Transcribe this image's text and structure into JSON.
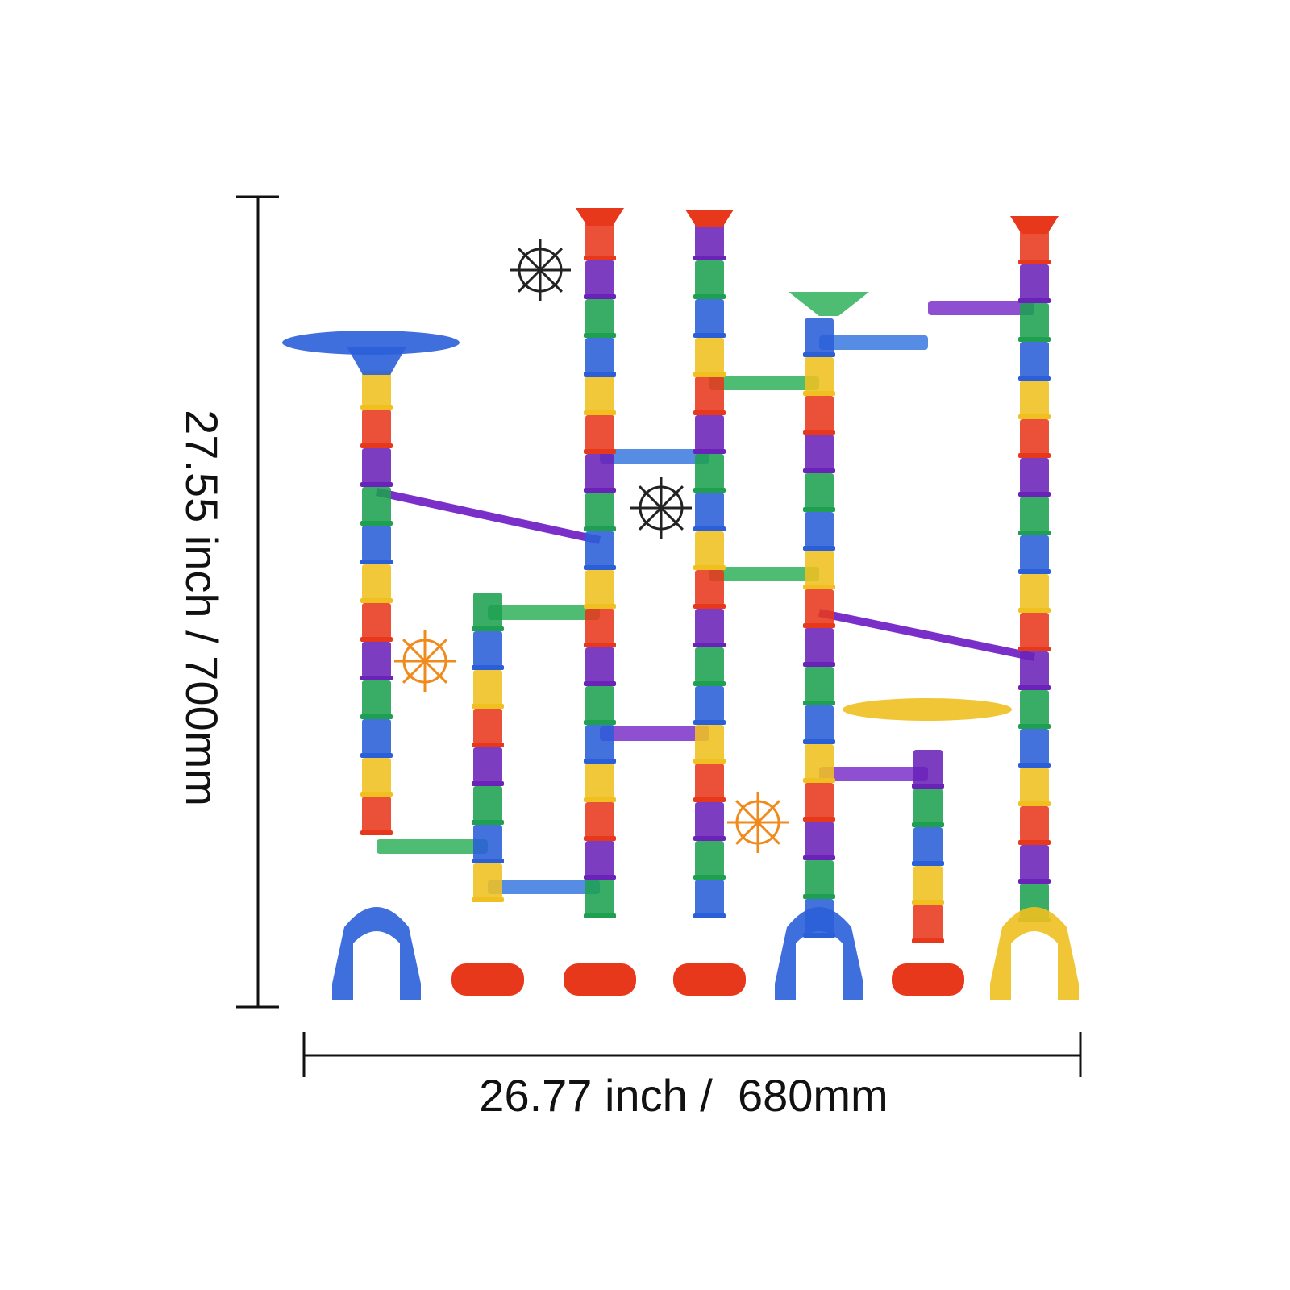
{
  "dimensions": {
    "height_label": "27.55 inch / 700mm",
    "width_label": "26.77 inch /  680mm"
  }
}
